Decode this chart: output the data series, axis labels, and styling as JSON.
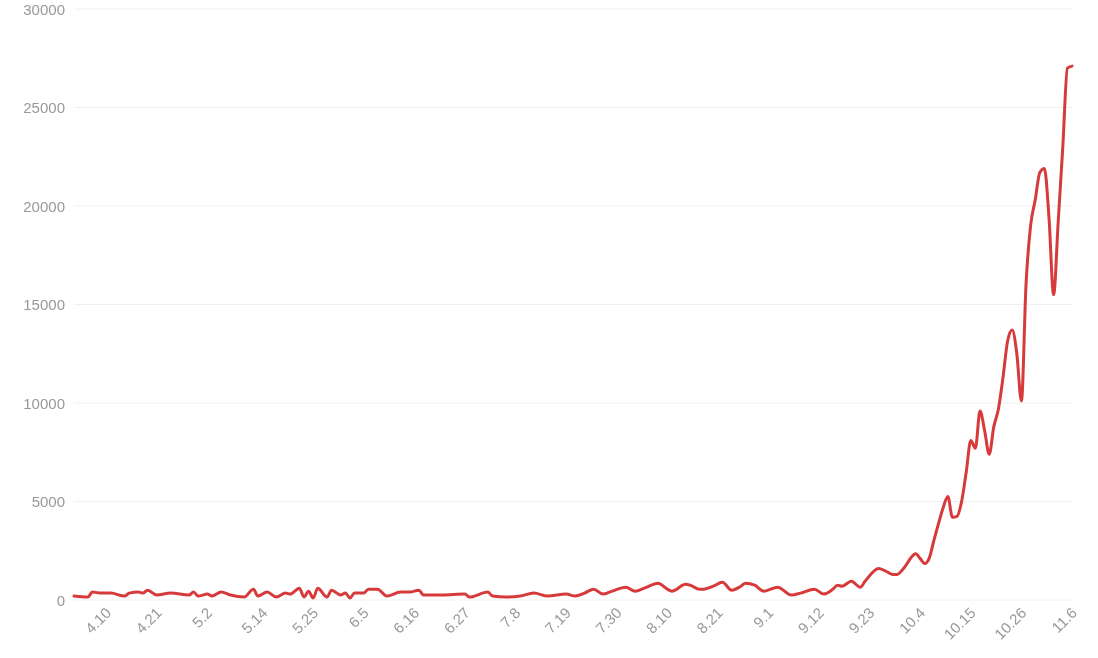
{
  "chart_data": {
    "type": "line",
    "color": "#d73a3a",
    "grid": "y",
    "x": [
      "--04-03",
      "--04-06",
      "--04-07",
      "--04-09",
      "--04-11",
      "--04-14",
      "--04-15",
      "--04-17",
      "--04-18",
      "--04-19",
      "--04-21",
      "--04-24",
      "--04-28",
      "--04-29",
      "--04-30",
      "--05-02",
      "--05-03",
      "--05-05",
      "--05-07",
      "--05-10",
      "--05-12",
      "--05-13",
      "--05-15",
      "--05-17",
      "--05-19",
      "--05-20",
      "--05-22",
      "--05-23",
      "--05-24",
      "--05-25",
      "--05-26",
      "--05-28",
      "--05-29",
      "--05-31",
      "--06-01",
      "--06-02",
      "--06-03",
      "--06-05",
      "--06-06",
      "--06-08",
      "--06-10",
      "--06-13",
      "--06-15",
      "--06-17",
      "--06-18",
      "--06-22",
      "--06-27",
      "--06-28",
      "--07-02",
      "--07-03",
      "--07-06",
      "--07-09",
      "--07-12",
      "--07-15",
      "--07-19",
      "--07-21",
      "--07-23",
      "--07-25",
      "--07-27",
      "--07-29",
      "--08-01",
      "--08-03",
      "--08-05",
      "--08-08",
      "--08-10",
      "--08-11",
      "--08-14",
      "--08-15",
      "--08-17",
      "--08-18",
      "--08-20",
      "--08-22",
      "--08-24",
      "--08-26",
      "--08-27",
      "--08-29",
      "--08-31",
      "--09-03",
      "--09-06",
      "--09-08",
      "--09-11",
      "--09-13",
      "--09-15",
      "--09-16",
      "--09-17",
      "--09-19",
      "--09-21",
      "--09-22",
      "--09-25",
      "--09-27",
      "--09-28",
      "--09-29",
      "--09-30",
      "--10-01",
      "--10-02",
      "--10-03",
      "--10-04",
      "--10-05",
      "--10-06",
      "--10-07",
      "--10-08",
      "--10-09",
      "--10-10",
      "--10-11",
      "--10-12",
      "--10-13",
      "--10-14",
      "--10-15",
      "--10-16",
      "--10-17",
      "--10-18",
      "--10-19",
      "--10-20",
      "--10-21",
      "--10-22",
      "--10-23",
      "--10-24",
      "--10-25",
      "--10-26",
      "--10-27",
      "--10-28",
      "--10-29",
      "--10-30",
      "--10-31",
      "--11-01",
      "--11-02",
      "--11-03",
      "--11-04",
      "--11-05",
      "--11-06"
    ],
    "values": [
      200,
      150,
      400,
      350,
      350,
      200,
      350,
      400,
      350,
      500,
      250,
      350,
      250,
      400,
      200,
      300,
      200,
      400,
      250,
      150,
      550,
      200,
      400,
      150,
      350,
      300,
      600,
      150,
      450,
      100,
      600,
      150,
      500,
      250,
      350,
      100,
      350,
      350,
      550,
      550,
      200,
      400,
      400,
      500,
      250,
      250,
      300,
      150,
      400,
      200,
      150,
      200,
      350,
      200,
      300,
      200,
      350,
      550,
      300,
      450,
      650,
      450,
      600,
      850,
      550,
      450,
      800,
      750,
      550,
      550,
      700,
      900,
      500,
      700,
      850,
      750,
      450,
      650,
      250,
      350,
      550,
      300,
      550,
      750,
      700,
      950,
      650,
      950,
      1600,
      1400,
      1300,
      1300,
      1500,
      1800,
      2150,
      2350,
      2100,
      1850,
      2150,
      3050,
      3900,
      4700,
      5250,
      4200,
      4250,
      5000,
      6500,
      8100,
      7700,
      9600,
      8600,
      7400,
      8800,
      9700,
      11300,
      13150,
      13700,
      12500,
      10100,
      16000,
      19000,
      20300,
      21700,
      21900,
      19400,
      15500,
      19200,
      23000,
      27000,
      27100
    ],
    "xlim": [
      "--04-03",
      "--11-06"
    ],
    "xticks": [
      {
        "value": "--04-10",
        "label": "4.10"
      },
      {
        "value": "--04-21",
        "label": "4.21"
      },
      {
        "value": "--05-02",
        "label": "5.2"
      },
      {
        "value": "--05-14",
        "label": "5.14"
      },
      {
        "value": "--05-25",
        "label": "5.25"
      },
      {
        "value": "--06-05",
        "label": "6.5"
      },
      {
        "value": "--06-16",
        "label": "6.16"
      },
      {
        "value": "--06-27",
        "label": "6.27"
      },
      {
        "value": "--07-08",
        "label": "7.8"
      },
      {
        "value": "--07-19",
        "label": "7.19"
      },
      {
        "value": "--07-30",
        "label": "7.30"
      },
      {
        "value": "--08-10",
        "label": "8.10"
      },
      {
        "value": "--08-21",
        "label": "8.21"
      },
      {
        "value": "--09-01",
        "label": "9.1"
      },
      {
        "value": "--09-12",
        "label": "9.12"
      },
      {
        "value": "--09-23",
        "label": "9.23"
      },
      {
        "value": "--10-04",
        "label": "10.4"
      },
      {
        "value": "--10-15",
        "label": "10.15"
      },
      {
        "value": "--10-26",
        "label": "10.26"
      },
      {
        "value": "--11-06",
        "label": "11.6"
      }
    ],
    "ylim": [
      0,
      30000
    ],
    "yticks": [
      0,
      5000,
      10000,
      15000,
      20000,
      25000,
      30000
    ]
  }
}
